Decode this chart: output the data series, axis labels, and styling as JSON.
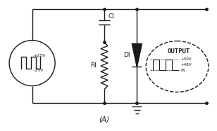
{
  "bg_color": "#ffffff",
  "line_color": "#1a1a1a",
  "title_label": "(A)",
  "output_label": "OUTPUT",
  "C1_label": "CI",
  "R1_label": "RI",
  "D1_label": "DI",
  "source_labels": [
    "+25V",
    "-25V"
  ],
  "output_waveform_labels": [
    "+50V",
    "+48V",
    "0V"
  ],
  "fig_width": 3.08,
  "fig_height": 1.87,
  "dpi": 100
}
